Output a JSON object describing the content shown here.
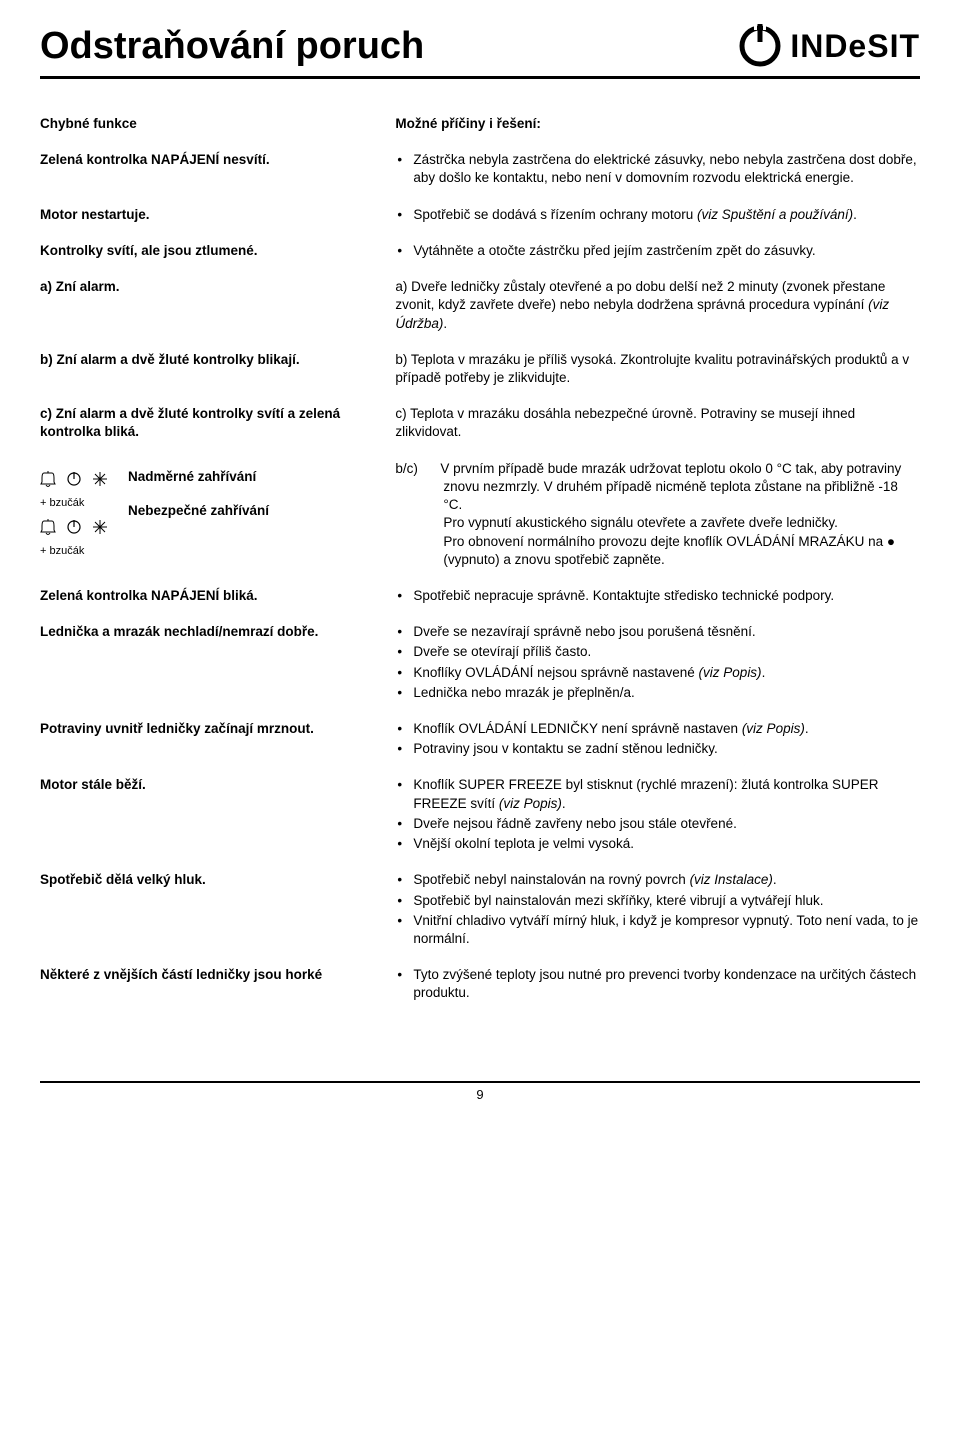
{
  "header": {
    "title": "Odstraňování poruch",
    "brand": "INDeSIT"
  },
  "column_headers": {
    "left": "Chybné funkce",
    "right": "Možné příčiny i řešení:"
  },
  "rows": [
    {
      "left": "Zelená kontrolka NAPÁJENÍ nesvítí.",
      "right_bullets": [
        "Zástrčka nebyla zastrčena do elektrické zásuvky, nebo nebyla zastrčena dost dobře, aby došlo ke kontaktu, nebo není v domovním rozvodu elektrická energie."
      ]
    },
    {
      "left": "Motor nestartuje.",
      "right_bullets": [
        "Spotřebič se dodává s řízením ochrany motoru <span class=\"italic\">(viz Spuštění a používání)</span>."
      ]
    },
    {
      "left": "Kontrolky svítí, ale jsou ztlumené.",
      "right_bullets": [
        "Vytáhněte a otočte zástrčku před jejím zastrčením zpět do zásuvky."
      ]
    },
    {
      "left": "a) Zní alarm.",
      "right_plain": "a) Dveře ledničky zůstaly otevřené a po dobu delší než 2 minuty (zvonek přestane zvonit, když zavřete dveře) nebo nebyla dodržena správná procedura vypínání <span class=\"italic\">(viz Údržba)</span>."
    },
    {
      "left": "b) Zní alarm a dvě žluté kontrolky blikají.",
      "right_plain": "b) Teplota v mrazáku je příliš vysoká. Zkontrolujte kvalitu potravinářských produktů a v případě potřeby je zlikvidujte."
    },
    {
      "left": "c) Zní alarm a dvě žluté kontrolky svítí a zelená kontrolka bliká.",
      "right_plain": "c) Teplota v mrazáku dosáhla nebezpečné úrovně. Potraviny se musejí ihned zlikvidovat."
    }
  ],
  "diagram": {
    "label1": "Nadměrné zahřívání",
    "label2": "Nebezpečné zahřívání",
    "buzzer": "bzučák",
    "right_text": "b/c)&nbsp;&nbsp;&nbsp;&nbsp;&nbsp;&nbsp;V prvním případě bude mrazák udržovat teplotu okolo 0 °C tak, aby potraviny znovu nezmrzly. V druhém případě nicméně teplota zůstane na přibližně -18 °C.<br>Pro vypnutí akustického signálu otevřete a zavřete dveře ledničky.<br>Pro obnovení normálního provozu dejte knoflík OVLÁDÁNÍ MRAZÁKU na ● (vypnuto) a znovu spotřebič zapněte."
  },
  "rows2": [
    {
      "left": "Zelená kontrolka NAPÁJENÍ bliká.",
      "right_bullets": [
        "Spotřebič nepracuje správně. Kontaktujte středisko technické podpory."
      ]
    },
    {
      "left": "Lednička a mrazák nechladí/nemrazí dobře.",
      "right_bullets": [
        "Dveře se nezavírají správně nebo jsou porušená těsnění.",
        "Dveře se otevírají příliš často.",
        "Knoflíky OVLÁDÁNÍ nejsou správně nastavené <span class=\"italic\">(viz Popis)</span>.",
        "Lednička nebo mrazák je přeplněn/a."
      ]
    },
    {
      "left": "Potraviny uvnitř ledničky začínají mrznout.",
      "right_bullets": [
        "Knoflík OVLÁDÁNÍ LEDNIČKY není správně nastaven <span class=\"italic\">(viz Popis)</span>.",
        "Potraviny jsou v kontaktu se zadní stěnou ledničky."
      ]
    },
    {
      "left": "Motor stále běží.",
      "right_bullets": [
        "Knoflík SUPER FREEZE byl stisknut (rychlé mrazení): žlutá kontrolka SUPER FREEZE svítí <span class=\"italic\">(viz Popis)</span>.",
        "Dveře nejsou řádně zavřeny nebo jsou stále otevřené.",
        "Vnější okolní teplota je velmi vysoká."
      ]
    },
    {
      "left": "Spotřebič dělá velký hluk.",
      "right_bullets": [
        "Spotřebič nebyl nainstalován na rovný povrch <span class=\"italic\">(viz Instalace)</span>.",
        "Spotřebič byl nainstalován mezi skříňky, které vibrují a vytvářejí hluk.",
        "Vnitřní chladivo vytváří mírný hluk, i když je kompresor vypnutý. Toto není vada, to je normální."
      ]
    },
    {
      "left": "Některé z vnějších částí ledničky jsou horké",
      "right_bullets": [
        "Tyto zvýšené teploty jsou nutné pro prevenci tvorby kondenzace na určitých částech produktu."
      ]
    }
  ],
  "footer": {
    "page": "9"
  }
}
